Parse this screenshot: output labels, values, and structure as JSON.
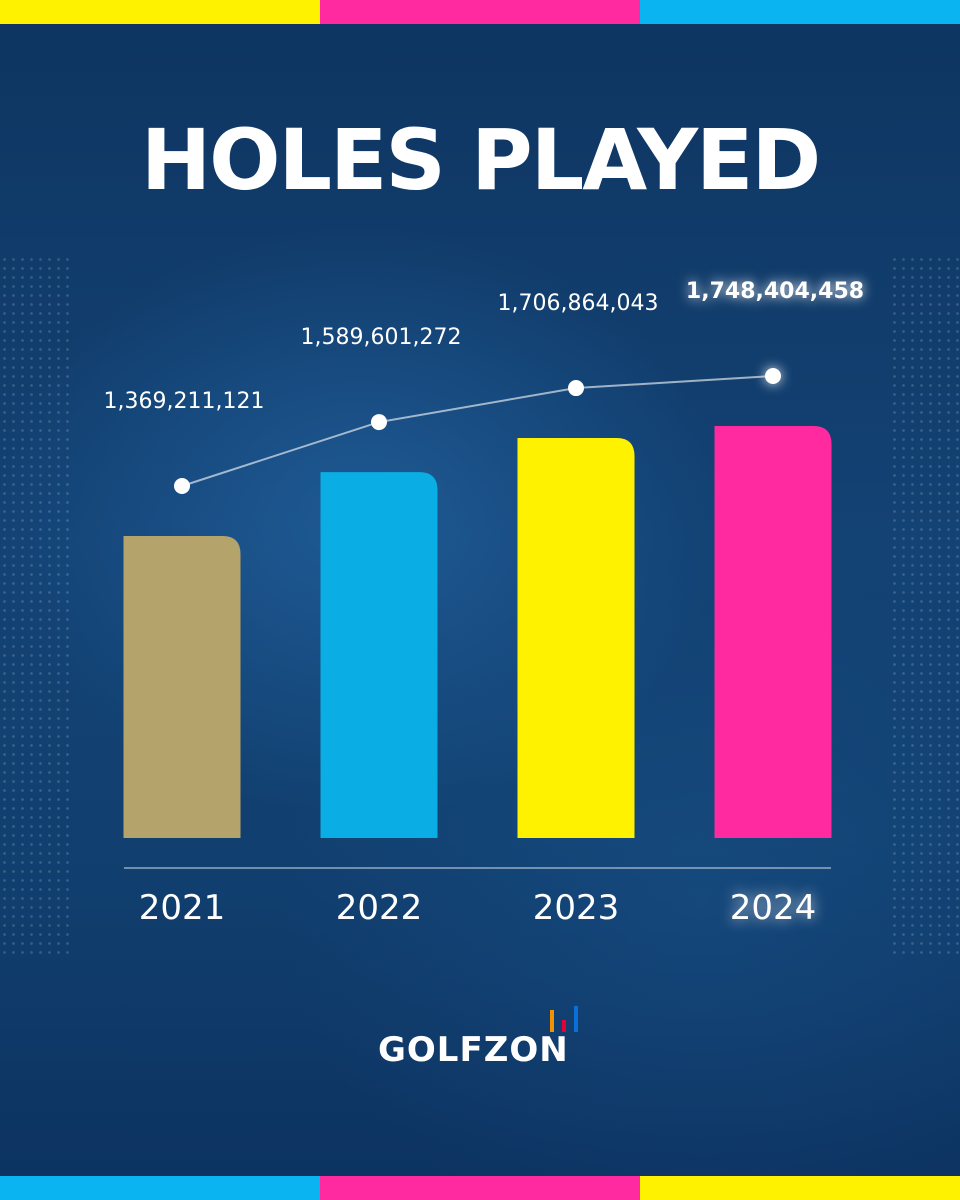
{
  "stripe_colors": [
    "#fff200",
    "#ff2a9f",
    "#0ab4f0"
  ],
  "chart_data": {
    "type": "bar",
    "title": "HOLES PLAYED",
    "categories": [
      "2021",
      "2022",
      "2023",
      "2024"
    ],
    "values": [
      1369211121,
      1589601272,
      1706864043,
      1748404458
    ],
    "value_labels": [
      "1,369,211,121",
      "1,589,601,272",
      "1,706,864,043",
      "1,748,404,458"
    ],
    "bar_colors": [
      "#b4a36b",
      "#0aaee4",
      "#fff200",
      "#ff2a9f"
    ],
    "highlight_index": 3,
    "overlay_line": true,
    "grid": false,
    "legend": "none"
  },
  "logo": {
    "text": "GOLFZON",
    "bar_colors": [
      "#f39200",
      "#e6003a",
      "#0a6fd8"
    ]
  }
}
